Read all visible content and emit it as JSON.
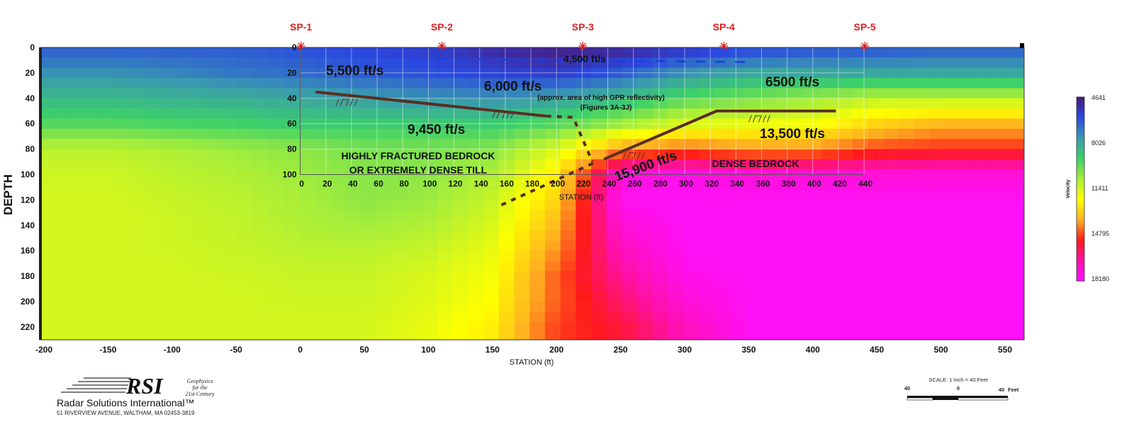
{
  "chart_data": {
    "type": "heatmap",
    "xlabel": "STATION (ft)",
    "ylabel": "DEPTH",
    "xlim": [
      -203,
      565
    ],
    "ylim": [
      230,
      0
    ],
    "xticks": [
      -200,
      -150,
      -100,
      -50,
      0,
      50,
      100,
      150,
      200,
      250,
      300,
      350,
      400,
      450,
      500,
      550
    ],
    "yticks": [
      0,
      20,
      40,
      60,
      80,
      100,
      120,
      140,
      160,
      180,
      200,
      220
    ],
    "inset_axis": {
      "xlabel": "STATION (ft)",
      "xticks": [
        0,
        20,
        40,
        60,
        80,
        100,
        120,
        140,
        160,
        180,
        200,
        220,
        240,
        260,
        280,
        300,
        320,
        340,
        360,
        380,
        400,
        420,
        440
      ],
      "yticks": [
        0,
        20,
        40,
        60,
        80,
        100
      ]
    },
    "stations": [
      -200,
      -150,
      -100,
      -50,
      0,
      50,
      100,
      150,
      200,
      250,
      300,
      350,
      400,
      450,
      500,
      550
    ],
    "depths": [
      0,
      20,
      40,
      60,
      80,
      100,
      120,
      140,
      160,
      180,
      200,
      220
    ],
    "velocity_grid": [
      [
        6500,
        6500,
        6500,
        6500,
        6300,
        6000,
        5800,
        5200,
        4800,
        5000,
        5500,
        6000,
        6200,
        6300,
        6500,
        6500
      ],
      [
        7500,
        7500,
        7300,
        7000,
        6800,
        6500,
        6300,
        6000,
        5800,
        6500,
        7500,
        8000,
        8000,
        8000,
        8000,
        8000
      ],
      [
        8500,
        8500,
        8300,
        8200,
        8000,
        7800,
        7500,
        7500,
        7800,
        8500,
        9500,
        10000,
        10500,
        11000,
        11000,
        11000
      ],
      [
        9500,
        9500,
        9300,
        9200,
        9000,
        9000,
        9000,
        9000,
        9500,
        10500,
        11500,
        11800,
        12000,
        13000,
        13500,
        13500
      ],
      [
        11000,
        11000,
        10800,
        10500,
        10300,
        10000,
        10000,
        10200,
        11500,
        14000,
        14500,
        14000,
        14000,
        14800,
        15000,
        15000
      ],
      [
        11300,
        11300,
        11000,
        10800,
        10500,
        10200,
        10300,
        10800,
        12500,
        17500,
        17800,
        17500,
        17500,
        17500,
        17500,
        17500
      ],
      [
        11400,
        11400,
        11200,
        11000,
        10700,
        10300,
        10500,
        11200,
        13000,
        18000,
        18000,
        18000,
        18000,
        18000,
        18000,
        18000
      ],
      [
        11400,
        11400,
        11300,
        11100,
        10800,
        10600,
        10800,
        11500,
        13500,
        17500,
        18000,
        18000,
        18000,
        18000,
        18000,
        18000
      ],
      [
        11400,
        11400,
        11300,
        11200,
        11000,
        11000,
        11200,
        11800,
        14000,
        17000,
        18000,
        18000,
        18000,
        18000,
        18000,
        18000
      ],
      [
        11400,
        11400,
        11400,
        11300,
        11200,
        11200,
        11500,
        12000,
        14500,
        16500,
        17800,
        18000,
        18000,
        18000,
        18000,
        18000
      ],
      [
        11400,
        11400,
        11400,
        11400,
        11300,
        11300,
        11600,
        12200,
        14500,
        16000,
        17500,
        18000,
        18000,
        18000,
        18000,
        18000
      ],
      [
        11400,
        11400,
        11400,
        11400,
        11400,
        11400,
        11800,
        12500,
        14800,
        15500,
        17000,
        18000,
        18000,
        18000,
        18000,
        18000
      ]
    ],
    "colorbar": {
      "label": "Velocity",
      "ticks": [
        "4641",
        "8026",
        "11411",
        "14795",
        "18180"
      ],
      "range": [
        4641,
        18180
      ],
      "colors": [
        "#4a1878",
        "#2a48e0",
        "#3a9ab0",
        "#3cd06a",
        "#a8ee3a",
        "#ffff00",
        "#ffb020",
        "#ff1a1a",
        "#ff10a8",
        "#ff10ff"
      ]
    },
    "shot_points": [
      {
        "label": "SP-1",
        "station": 0
      },
      {
        "label": "SP-2",
        "station": 110
      },
      {
        "label": "SP-3",
        "station": 220
      },
      {
        "label": "SP-4",
        "station": 330
      },
      {
        "label": "SP-5",
        "station": 440
      }
    ],
    "annotations": {
      "v4500": "4,500 ft/s",
      "v5500": "5,500 ft/s",
      "v6000": "6,000 ft/s",
      "gpr_note": "(approx. area of high GPR reflectivity)",
      "figures_note": "(Figures 3A-3J)",
      "v6500": "6500 ft/s",
      "v9450": "9,450 ft/s",
      "v13500": "13,500 ft/s",
      "v15900": "15,900 ft/s",
      "fractured_1": "HIGHLY FRACTURED BEDROCK",
      "fractured_2": "OR EXTREMELY DENSE TILL",
      "dense": "DENSE BEDROCK"
    }
  },
  "logo": {
    "mark": "RSI",
    "tagline": [
      "Geophysics",
      "for the",
      "21st Century"
    ],
    "company": "Radar Solutions International™",
    "address": "51 RIVERVIEW AVENUE, WALTHAM, MA 02453-3819"
  },
  "scale": {
    "title": "SCALE: 1 Inch = 40 Feet",
    "left": "40",
    "mid": "0",
    "right": "40",
    "unit": "Feet"
  }
}
